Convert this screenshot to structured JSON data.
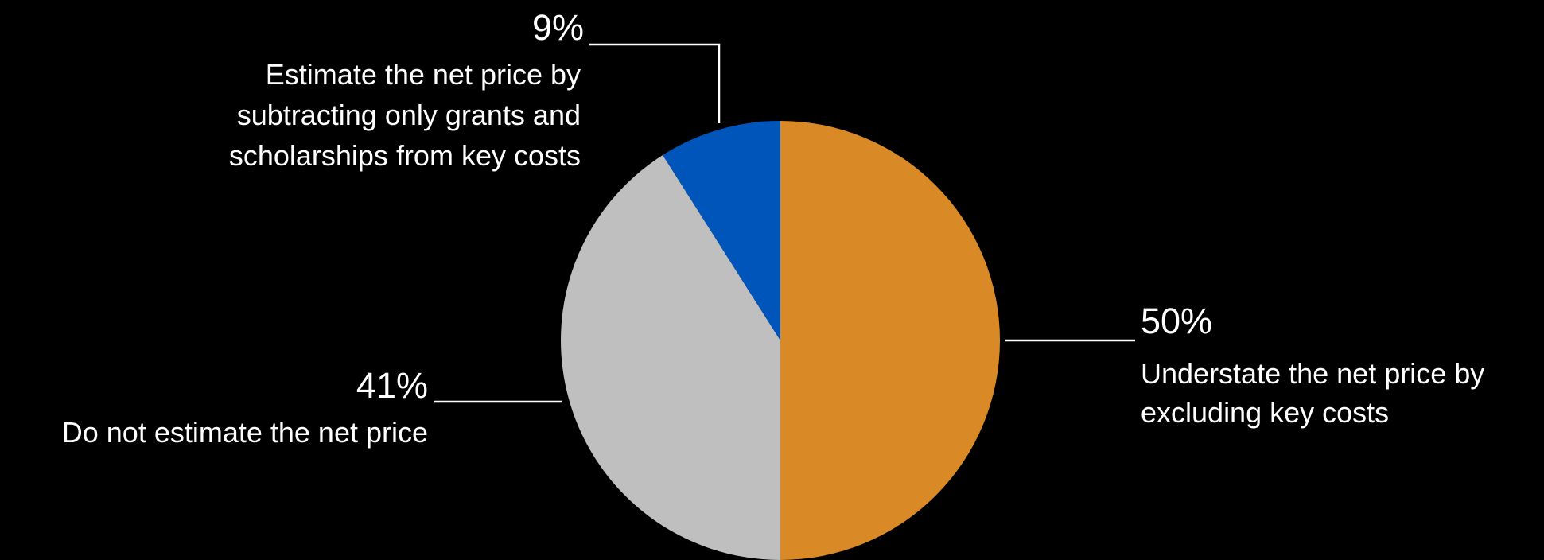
{
  "chart_data": {
    "type": "pie",
    "title": "",
    "start_angle_deg": 0,
    "direction": "clockwise",
    "slices": [
      {
        "key": "understate",
        "value": 50,
        "value_label": "50%",
        "label_lines": [
          "Understate the net price by",
          "excluding key costs"
        ],
        "color": "#D98A26"
      },
      {
        "key": "not_estimate",
        "value": 41,
        "value_label": "41%",
        "label_lines": [
          "Do not estimate the net price"
        ],
        "color": "#BFBFBF"
      },
      {
        "key": "grants_only",
        "value": 9,
        "value_label": "9%",
        "label_lines": [
          "Estimate the net price by",
          "subtracting only grants and",
          "scholarships from key costs"
        ],
        "color": "#0055BB"
      }
    ],
    "background": "#000000",
    "text_color": "#FFFFFF"
  }
}
